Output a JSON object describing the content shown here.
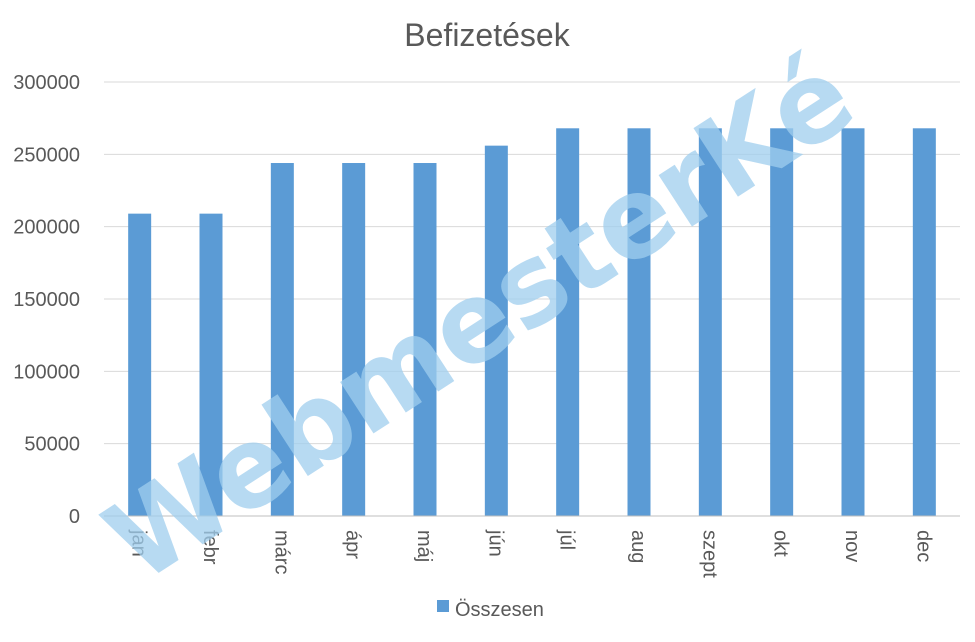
{
  "chart_data": {
    "type": "bar",
    "title": "Befizetések",
    "categories": [
      "jan",
      "febr",
      "márc",
      "ápr",
      "máj",
      "jún",
      "júl",
      "aug",
      "szept",
      "okt",
      "nov",
      "dec"
    ],
    "series": [
      {
        "name": "Összesen",
        "color": "#5b9bd5",
        "values": [
          209000,
          209000,
          244000,
          244000,
          244000,
          256000,
          268000,
          268000,
          268000,
          268000,
          268000,
          268000
        ]
      }
    ],
    "yticks": [
      "0",
      "50000",
      "100000",
      "150000",
      "200000",
      "250000",
      "300000"
    ],
    "ylim": [
      0,
      300000
    ],
    "grid": true,
    "legend": "bottom"
  },
  "watermark": {
    "text": "WebmesterKé",
    "color": "#9fcdee"
  }
}
